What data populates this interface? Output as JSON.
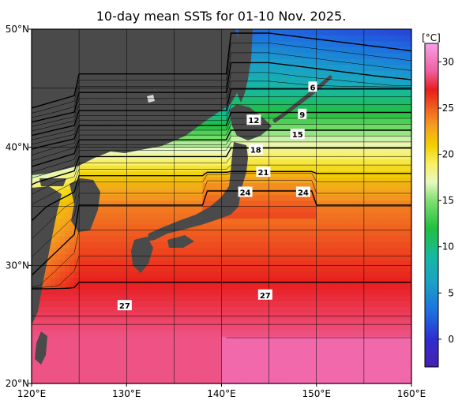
{
  "title": "10-day mean SSTs for 01-10 Nov. 2025.",
  "map": {
    "lon_range": [
      120,
      160
    ],
    "lat_range": [
      20,
      50
    ],
    "lat_ticks": [
      {
        "value": 50,
        "label": "50°N"
      },
      {
        "value": 40,
        "label": "40°N"
      },
      {
        "value": 30,
        "label": "30°N"
      },
      {
        "value": 20,
        "label": "20°N"
      }
    ],
    "lon_ticks": [
      {
        "value": 120,
        "label": "120°E"
      },
      {
        "value": 130,
        "label": "130°E"
      },
      {
        "value": 140,
        "label": "140°E"
      },
      {
        "value": 150,
        "label": "150°E"
      },
      {
        "value": 160,
        "label": "160°E"
      }
    ],
    "gridlines": true,
    "land_color": "#4a4a4a",
    "contour_labels": [
      {
        "text": "6",
        "lon": 149.6,
        "lat": 45.1
      },
      {
        "text": "9",
        "lon": 148.5,
        "lat": 42.8
      },
      {
        "text": "12",
        "lon": 143.4,
        "lat": 42.3
      },
      {
        "text": "15",
        "lon": 148.0,
        "lat": 41.1
      },
      {
        "text": "18",
        "lon": 143.6,
        "lat": 39.8
      },
      {
        "text": "21",
        "lon": 144.4,
        "lat": 37.9
      },
      {
        "text": "24",
        "lon": 142.5,
        "lat": 36.2
      },
      {
        "text": "24",
        "lon": 148.6,
        "lat": 36.2
      },
      {
        "text": "27",
        "lon": 129.8,
        "lat": 26.6
      },
      {
        "text": "27",
        "lon": 144.6,
        "lat": 27.5
      }
    ]
  },
  "colorbar": {
    "unit": "[°C]",
    "range": [
      -3,
      32
    ],
    "ticks": [
      {
        "value": 30,
        "label": "30"
      },
      {
        "value": 25,
        "label": "25"
      },
      {
        "value": 20,
        "label": "20"
      },
      {
        "value": 15,
        "label": "15"
      },
      {
        "value": 10,
        "label": "10"
      },
      {
        "value": 5,
        "label": "5"
      },
      {
        "value": 0,
        "label": "0"
      }
    ],
    "stops": [
      {
        "value": -3,
        "color": "#4a1fb0"
      },
      {
        "value": 0,
        "color": "#2d2fd0"
      },
      {
        "value": 3,
        "color": "#1e6fe0"
      },
      {
        "value": 6,
        "color": "#1aa0c8"
      },
      {
        "value": 9,
        "color": "#18b8a0"
      },
      {
        "value": 12,
        "color": "#20c040"
      },
      {
        "value": 15,
        "color": "#80e070"
      },
      {
        "value": 17,
        "color": "#e8f8c0"
      },
      {
        "value": 19,
        "color": "#f8f060"
      },
      {
        "value": 21,
        "color": "#f0d000"
      },
      {
        "value": 23,
        "color": "#f4a020"
      },
      {
        "value": 25,
        "color": "#f06020"
      },
      {
        "value": 27,
        "color": "#e81e1e"
      },
      {
        "value": 29,
        "color": "#f060a0"
      },
      {
        "value": 32,
        "color": "#f8a0e8"
      }
    ]
  }
}
